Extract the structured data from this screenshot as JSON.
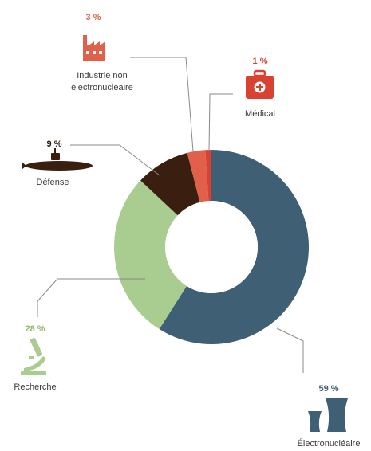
{
  "chart_data": {
    "type": "pie",
    "variant": "donut",
    "title": "",
    "slices": [
      {
        "key": "electro",
        "label": "Électronucléaire",
        "pct_label": "59 %",
        "value": 59,
        "color": "#3f5f74"
      },
      {
        "key": "recherche",
        "label": "Recherche",
        "pct_label": "28 %",
        "value": 28,
        "color": "#a9cc90"
      },
      {
        "key": "defense",
        "label": "Défense",
        "pct_label": "9 %",
        "value": 9,
        "color": "#3a1f10"
      },
      {
        "key": "industrie",
        "label_lines": [
          "Industrie non",
          "électronucléaire"
        ],
        "pct_label": "3 %",
        "value": 3,
        "color": "#e0604a"
      },
      {
        "key": "medical",
        "label": "Médical",
        "pct_label": "1 %",
        "value": 1,
        "color": "#d94130"
      }
    ],
    "legend": "none",
    "icons": {
      "electro": "cooling-towers-icon",
      "recherche": "microscope-icon",
      "defense": "submarine-icon",
      "industrie": "factory-icon",
      "medical": "medical-kit-icon"
    },
    "pct_colors": {
      "electro": "#3f5f74",
      "recherche": "#8dbb6a",
      "defense": "#2a1a10",
      "industrie": "#e0604a",
      "medical": "#d94130"
    }
  }
}
